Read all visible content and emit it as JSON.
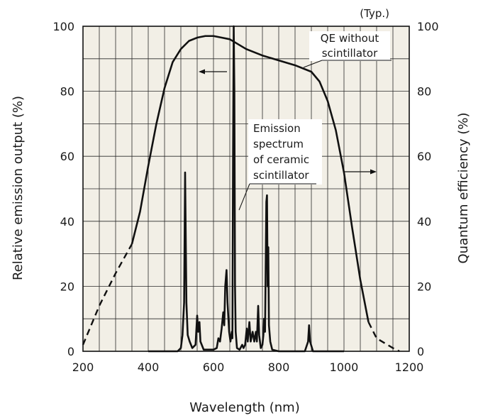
{
  "chart_data": {
    "type": "line",
    "title": "",
    "typ_label": "(Typ.)",
    "xlabel": "Wavelength (nm)",
    "ylabel_left": "Relative emission output (%)",
    "ylabel_right": "Quantum efficiency (%)",
    "xlim": [
      200,
      1200
    ],
    "ylim": [
      0,
      100
    ],
    "x_ticks": [
      200,
      400,
      600,
      800,
      1000,
      1200
    ],
    "y_ticks": [
      0,
      20,
      40,
      60,
      80,
      100
    ],
    "grid": true,
    "plot_background": "#f2efe6",
    "line_color": "#111111",
    "annotations": {
      "qe": [
        "QE without",
        "scintillator"
      ],
      "emission": [
        "Emission",
        "spectrum",
        "of ceramic",
        "scintillator"
      ]
    },
    "series": [
      {
        "key": "qe",
        "axis": "right",
        "values": [
          [
            200,
            2
          ],
          [
            250,
            14
          ],
          [
            300,
            24
          ],
          [
            350,
            33
          ],
          [
            375,
            43
          ],
          [
            400,
            57
          ],
          [
            425,
            70
          ],
          [
            450,
            81
          ],
          [
            475,
            89
          ],
          [
            500,
            93
          ],
          [
            525,
            95.5
          ],
          [
            550,
            96.5
          ],
          [
            575,
            97
          ],
          [
            600,
            97
          ],
          [
            625,
            96.5
          ],
          [
            650,
            96
          ],
          [
            675,
            94.5
          ],
          [
            700,
            93
          ],
          [
            750,
            91
          ],
          [
            800,
            89.5
          ],
          [
            850,
            88
          ],
          [
            900,
            86
          ],
          [
            925,
            83
          ],
          [
            950,
            77
          ],
          [
            975,
            68
          ],
          [
            1000,
            55
          ],
          [
            1025,
            38
          ],
          [
            1050,
            22
          ],
          [
            1075,
            9
          ],
          [
            1100,
            4
          ],
          [
            1150,
            1
          ],
          [
            1170,
            0
          ]
        ],
        "dashed_below": 350,
        "dashed_above": 1075
      },
      {
        "key": "emission",
        "axis": "left",
        "values": [
          [
            400,
            0
          ],
          [
            490,
            0
          ],
          [
            500,
            1
          ],
          [
            505,
            5
          ],
          [
            510,
            15
          ],
          [
            513,
            55
          ],
          [
            517,
            15
          ],
          [
            521,
            5
          ],
          [
            527,
            3
          ],
          [
            535,
            1
          ],
          [
            545,
            2
          ],
          [
            550,
            11
          ],
          [
            553,
            6
          ],
          [
            557,
            9
          ],
          [
            560,
            3
          ],
          [
            570,
            0.5
          ],
          [
            600,
            0.5
          ],
          [
            610,
            1
          ],
          [
            615,
            4
          ],
          [
            620,
            3
          ],
          [
            625,
            7
          ],
          [
            630,
            12
          ],
          [
            633,
            8
          ],
          [
            636,
            20
          ],
          [
            640,
            25
          ],
          [
            643,
            15
          ],
          [
            648,
            6
          ],
          [
            652,
            3
          ],
          [
            656,
            6
          ],
          [
            658,
            4
          ],
          [
            660,
            60
          ],
          [
            662,
            100
          ],
          [
            664,
            80
          ],
          [
            666,
            20
          ],
          [
            668,
            6
          ],
          [
            672,
            1
          ],
          [
            680,
            0.5
          ],
          [
            688,
            2
          ],
          [
            692,
            1
          ],
          [
            697,
            2
          ],
          [
            702,
            7
          ],
          [
            705,
            3
          ],
          [
            710,
            9
          ],
          [
            714,
            3
          ],
          [
            720,
            6
          ],
          [
            725,
            3
          ],
          [
            730,
            6
          ],
          [
            733,
            3
          ],
          [
            737,
            14
          ],
          [
            740,
            5
          ],
          [
            745,
            1
          ],
          [
            750,
            2
          ],
          [
            753,
            5
          ],
          [
            755,
            10
          ],
          [
            758,
            6
          ],
          [
            762,
            46
          ],
          [
            764,
            48
          ],
          [
            766,
            20
          ],
          [
            768,
            32
          ],
          [
            770,
            8
          ],
          [
            774,
            3
          ],
          [
            780,
            0.5
          ],
          [
            800,
            0
          ],
          [
            880,
            0
          ],
          [
            890,
            3
          ],
          [
            893,
            8
          ],
          [
            896,
            3
          ],
          [
            905,
            0
          ],
          [
            1000,
            0
          ]
        ]
      }
    ]
  }
}
